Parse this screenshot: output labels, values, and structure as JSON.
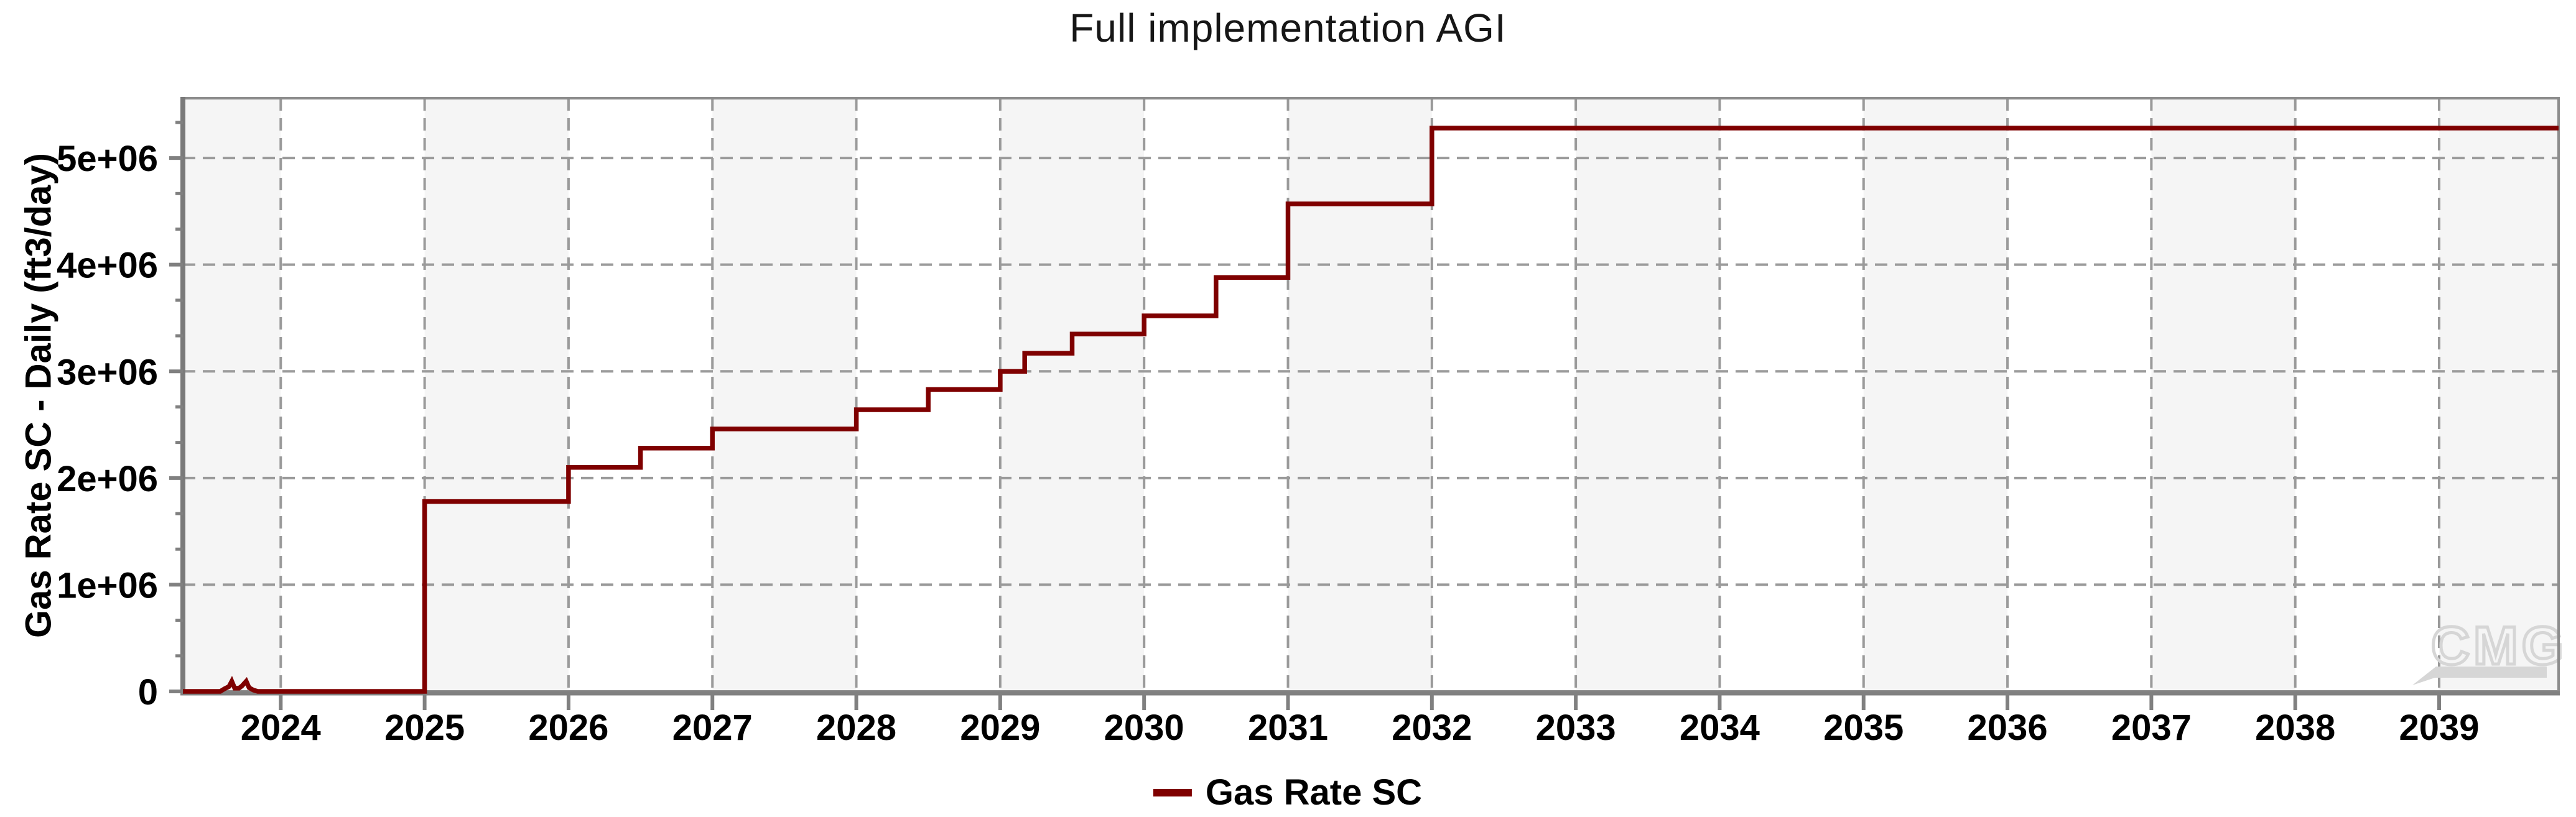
{
  "title": "Full implementation AGI",
  "watermark": {
    "text": "CMG",
    "color": "#d6d6d6"
  },
  "legend": {
    "position": "bottom-center",
    "items": [
      {
        "label": "Gas Rate SC",
        "color": "#7f0000",
        "swatch": "line"
      }
    ]
  },
  "chart_data": {
    "type": "line",
    "title": "Full implementation AGI",
    "xlabel": "",
    "ylabel": "Gas Rate SC - Daily (ft3/day)",
    "x_unit": "year",
    "xlim": [
      2023.32,
      2039.83
    ],
    "ylim": [
      0,
      5560000
    ],
    "x_ticks": [
      2024,
      2025,
      2026,
      2027,
      2028,
      2029,
      2030,
      2031,
      2032,
      2033,
      2034,
      2035,
      2036,
      2037,
      2038,
      2039
    ],
    "y_ticks": [
      {
        "value": 0,
        "label": "0"
      },
      {
        "value": 1000000,
        "label": "1e+06"
      },
      {
        "value": 2000000,
        "label": "2e+06"
      },
      {
        "value": 3000000,
        "label": "3e+06"
      },
      {
        "value": 4000000,
        "label": "4e+06"
      },
      {
        "value": 5000000,
        "label": "5e+06"
      }
    ],
    "y_minor_tick_step": 333333,
    "grid": {
      "style": "dashed",
      "color": "#9a9a9a",
      "on": true
    },
    "plot_bands": {
      "color": "#f5f5f5",
      "intervals": [
        [
          2023.32,
          2024
        ],
        [
          2025,
          2026
        ],
        [
          2027,
          2028
        ],
        [
          2029,
          2030
        ],
        [
          2031,
          2032
        ],
        [
          2033,
          2034
        ],
        [
          2035,
          2036
        ],
        [
          2037,
          2038
        ],
        [
          2039,
          2039.83
        ]
      ]
    },
    "series": [
      {
        "name": "Gas Rate SC",
        "color": "#7f0000",
        "line_width": 7.5,
        "mode": "explicit-step-vertices",
        "points": [
          [
            2023.32,
            0
          ],
          [
            2023.58,
            0
          ],
          [
            2023.61,
            25000
          ],
          [
            2023.64,
            45000
          ],
          [
            2023.66,
            95000
          ],
          [
            2023.68,
            30000
          ],
          [
            2023.71,
            30000
          ],
          [
            2023.73,
            50000
          ],
          [
            2023.76,
            95000
          ],
          [
            2023.78,
            35000
          ],
          [
            2023.81,
            12000
          ],
          [
            2023.84,
            0
          ],
          [
            2025.0,
            0
          ],
          [
            2025.0,
            1780000
          ],
          [
            2026.0,
            1780000
          ],
          [
            2026.0,
            2100000
          ],
          [
            2026.5,
            2100000
          ],
          [
            2026.5,
            2280000
          ],
          [
            2027.0,
            2280000
          ],
          [
            2027.0,
            2460000
          ],
          [
            2028.0,
            2460000
          ],
          [
            2028.0,
            2640000
          ],
          [
            2028.5,
            2640000
          ],
          [
            2028.5,
            2830000
          ],
          [
            2029.0,
            2830000
          ],
          [
            2029.0,
            3000000
          ],
          [
            2029.17,
            3000000
          ],
          [
            2029.17,
            3170000
          ],
          [
            2029.5,
            3170000
          ],
          [
            2029.5,
            3350000
          ],
          [
            2030.0,
            3350000
          ],
          [
            2030.0,
            3520000
          ],
          [
            2030.5,
            3520000
          ],
          [
            2030.5,
            3880000
          ],
          [
            2031.0,
            3880000
          ],
          [
            2031.0,
            4570000
          ],
          [
            2032.0,
            4570000
          ],
          [
            2032.0,
            5280000
          ],
          [
            2039.83,
            5280000
          ]
        ]
      }
    ],
    "legend_position": "bottom-center"
  },
  "style": {
    "background": "#ffffff",
    "band_color": "#f5f5f5",
    "grid_color": "#9a9a9a",
    "frame_color": "#8c8c8c",
    "axis_color": "#7a7a7a",
    "tick_color": "#808080",
    "label_color": "#000000",
    "title_color": "#161616",
    "line_color": "#7f0000"
  }
}
